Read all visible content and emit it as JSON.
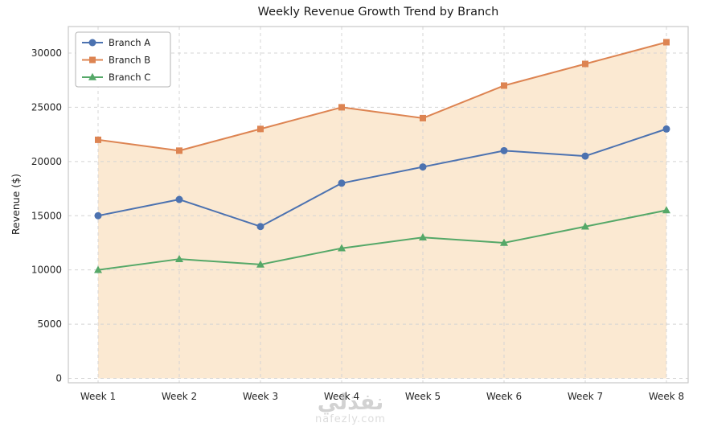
{
  "watermark": {
    "arabic": "نفذلي",
    "domain": "nafezly.com"
  },
  "chart_data": {
    "type": "line",
    "title": "Weekly Revenue Growth Trend by Branch",
    "xlabel": "",
    "ylabel": "Revenue ($)",
    "categories": [
      "Week 1",
      "Week 2",
      "Week 3",
      "Week 4",
      "Week 5",
      "Week 6",
      "Week 7",
      "Week 8"
    ],
    "yticks": [
      0,
      5000,
      10000,
      15000,
      20000,
      25000,
      30000
    ],
    "ylim": [
      0,
      32000
    ],
    "grid": "dashed-both-axes",
    "legend_position": "upper-left",
    "series": [
      {
        "name": "Branch A",
        "marker": "circle",
        "color": "#4C72B0",
        "values": [
          15000,
          16500,
          14000,
          18000,
          19500,
          21000,
          20500,
          23000
        ]
      },
      {
        "name": "Branch B",
        "marker": "square",
        "color": "#DD8452",
        "fill_to_zero": true,
        "fill_color": "#FAE5CA",
        "values": [
          22000,
          21000,
          23000,
          25000,
          24000,
          27000,
          29000,
          31000
        ]
      },
      {
        "name": "Branch C",
        "marker": "triangle",
        "color": "#55A868",
        "values": [
          10000,
          11000,
          10500,
          12000,
          13000,
          12500,
          14000,
          15500
        ]
      }
    ]
  }
}
